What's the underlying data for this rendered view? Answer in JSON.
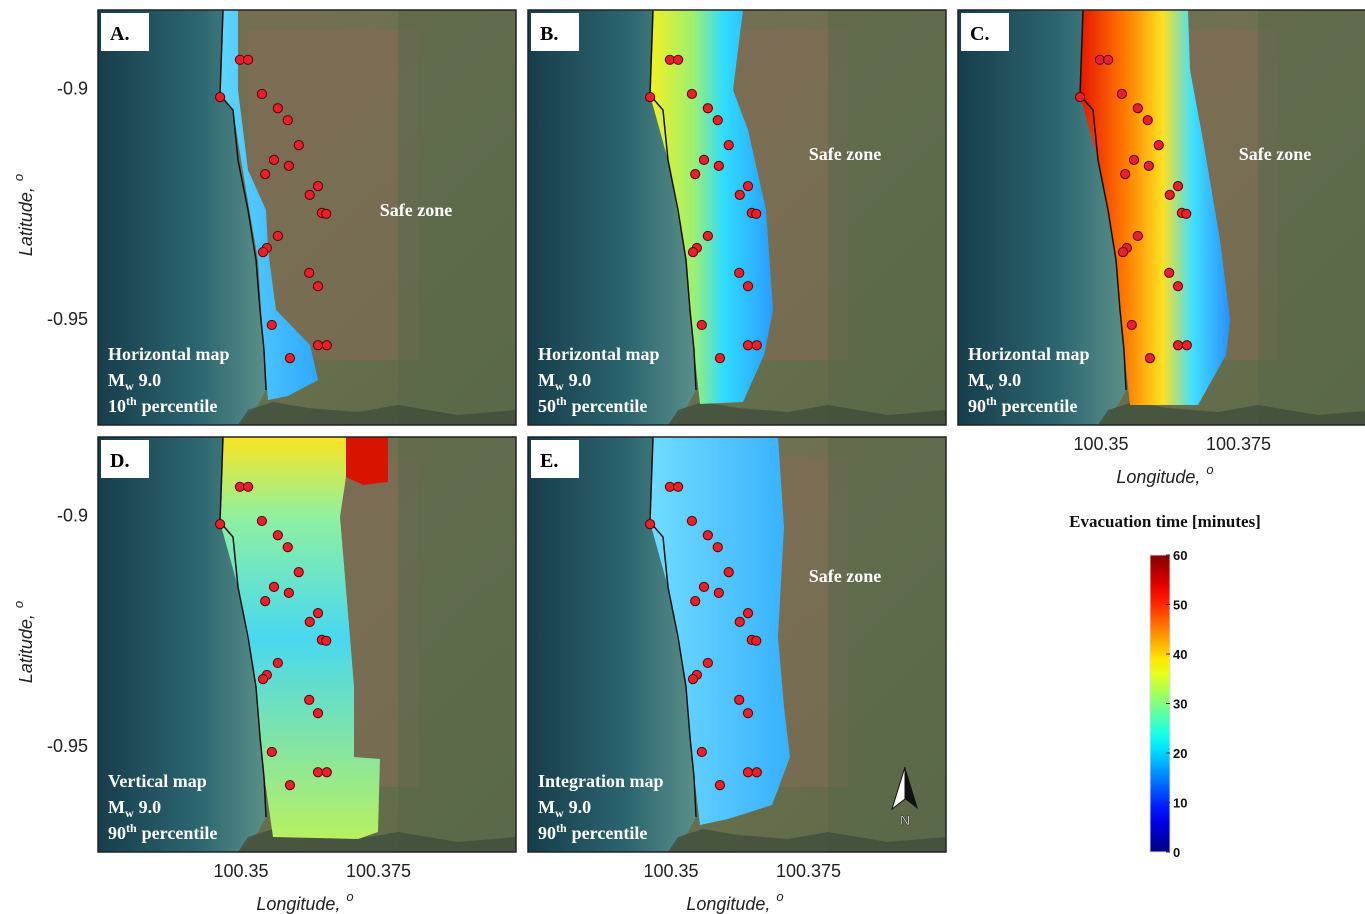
{
  "panels": [
    {
      "label": "A.",
      "map_type": "Horizontal map",
      "magnitude": {
        "symbol": "M",
        "subscript": "w",
        "value": "9.0"
      },
      "percentile": {
        "number": "10",
        "suffix": "th",
        "text": "percentile"
      },
      "zone_label": "Safe zone",
      "xlim": [
        100.324,
        100.4
      ],
      "ylim": [
        -0.973,
        -0.883
      ],
      "yticks": [
        -0.9,
        -0.95
      ],
      "ylabel": {
        "text": "Latitude,",
        "superscript": "o"
      }
    },
    {
      "label": "B.",
      "map_type": "Horizontal map",
      "magnitude": {
        "symbol": "M",
        "subscript": "w",
        "value": "9.0"
      },
      "percentile": {
        "number": "50",
        "suffix": "th",
        "text": "percentile"
      },
      "zone_label": "Safe zone",
      "xlim": [
        100.324,
        100.4
      ],
      "ylim": [
        -0.973,
        -0.883
      ]
    },
    {
      "label": "C.",
      "map_type": "Horizontal map",
      "magnitude": {
        "symbol": "M",
        "subscript": "w",
        "value": "9.0"
      },
      "percentile": {
        "number": "90",
        "suffix": "th",
        "text": "percentile"
      },
      "zone_label": "Safe zone",
      "xlim": [
        100.324,
        100.4
      ],
      "ylim": [
        -0.973,
        -0.883
      ],
      "xticks": [
        100.35,
        100.375
      ],
      "xlabel": {
        "text": "Longitude,",
        "superscript": "o"
      }
    },
    {
      "label": "D.",
      "map_type": "Vertical map",
      "magnitude": {
        "symbol": "M",
        "subscript": "w",
        "value": "9.0"
      },
      "percentile": {
        "number": "90",
        "suffix": "th",
        "text": "percentile"
      },
      "xlim": [
        100.324,
        100.4
      ],
      "ylim": [
        -0.973,
        -0.883
      ],
      "xticks": [
        100.35,
        100.375
      ],
      "yticks": [
        -0.9,
        -0.95
      ],
      "xlabel": {
        "text": "Longitude,",
        "superscript": "o"
      },
      "ylabel": {
        "text": "Latitude,",
        "superscript": "o"
      }
    },
    {
      "label": "E.",
      "map_type": "Integration map",
      "magnitude": {
        "symbol": "M",
        "subscript": "w",
        "value": "9.0"
      },
      "percentile": {
        "number": "90",
        "suffix": "th",
        "text": "percentile"
      },
      "zone_label": "Safe zone",
      "north_label": "N",
      "xlim": [
        100.324,
        100.4
      ],
      "ylim": [
        -0.973,
        -0.883
      ],
      "xticks": [
        100.35,
        100.375
      ],
      "xlabel": {
        "text": "Longitude,",
        "superscript": "o"
      }
    }
  ],
  "shelters": {
    "color": "#e8202a",
    "lon": [
      100.3498,
      100.3513,
      100.3462,
      100.3538,
      100.3567,
      100.3585,
      100.3605,
      100.356,
      100.3587,
      100.3544,
      100.3625,
      100.364,
      100.3647,
      100.3655,
      100.3567,
      100.3547,
      100.354,
      100.3624,
      100.364,
      100.3556,
      100.364,
      100.3656,
      100.3589
    ],
    "lat": [
      -0.8938,
      -0.8938,
      -0.9019,
      -0.9012,
      -0.9043,
      -0.9069,
      -0.9123,
      -0.9155,
      -0.9168,
      -0.9186,
      -0.9231,
      -0.9212,
      -0.927,
      -0.9272,
      -0.932,
      -0.9346,
      -0.9355,
      -0.94,
      -0.9429,
      -0.9513,
      -0.9557,
      -0.9557,
      -0.9585
    ]
  },
  "colorbar": {
    "title": "Evacuation time [minutes]",
    "colormap": "jet",
    "clim": [
      0,
      60
    ],
    "ticks": [
      0,
      10,
      20,
      30,
      40,
      50,
      60
    ]
  }
}
